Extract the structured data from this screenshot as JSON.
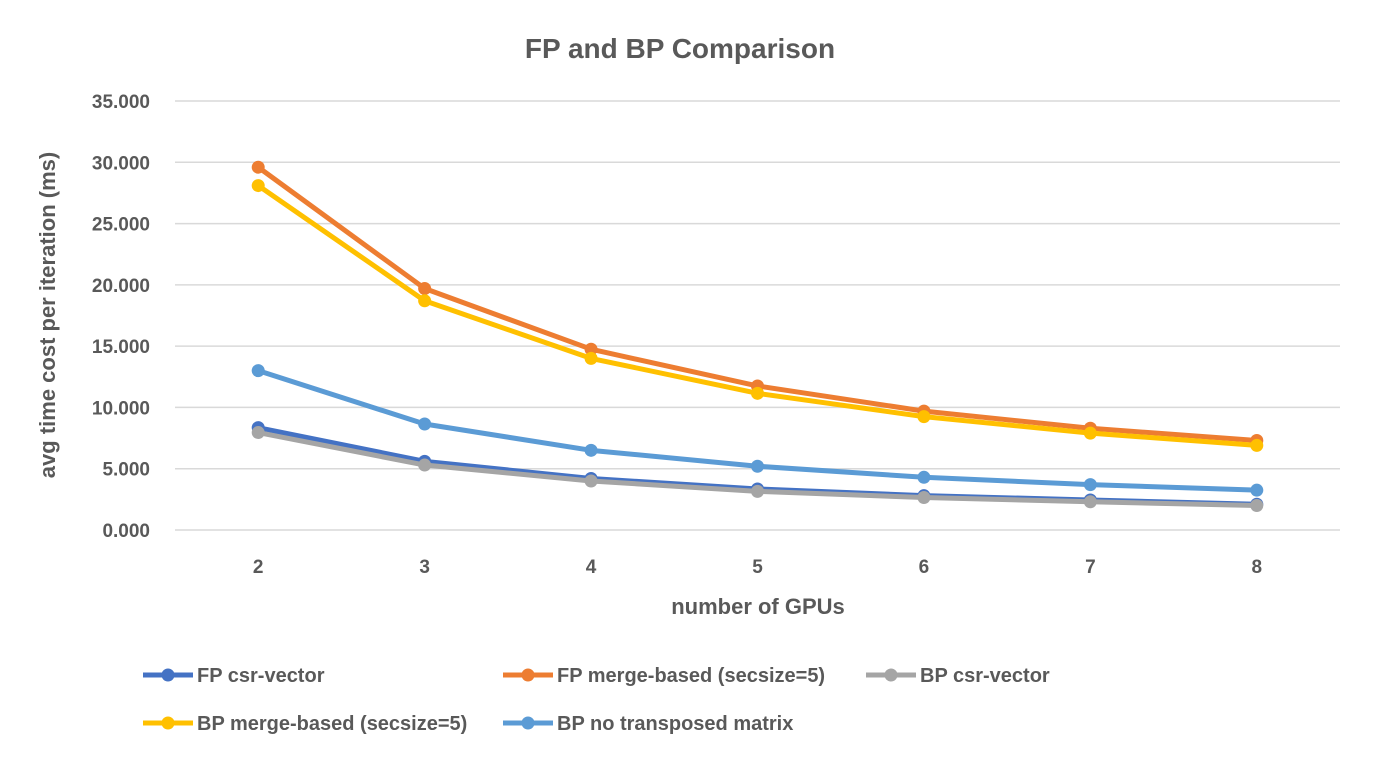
{
  "chart_data": {
    "type": "line",
    "title": "FP and BP Comparison",
    "xlabel": "number of GPUs",
    "ylabel": "avg time cost per iteration (ms)",
    "x": [
      2,
      3,
      4,
      5,
      6,
      7,
      8
    ],
    "ylim": [
      0,
      35
    ],
    "yticks": [
      "0.000",
      "5.000",
      "10.000",
      "15.000",
      "20.000",
      "25.000",
      "30.000",
      "35.000"
    ],
    "grid": true,
    "legend_position": "bottom",
    "series": [
      {
        "name": "FP csr-vector",
        "color": "#4472c4",
        "values": [
          8.35,
          5.6,
          4.2,
          3.35,
          2.8,
          2.45,
          2.1
        ]
      },
      {
        "name": "FP merge-based (secsize=5)",
        "color": "#ed7d31",
        "values": [
          29.6,
          19.7,
          14.75,
          11.75,
          9.7,
          8.3,
          7.3
        ]
      },
      {
        "name": "BP csr-vector",
        "color": "#a5a5a5",
        "values": [
          7.95,
          5.3,
          4.0,
          3.15,
          2.65,
          2.3,
          2.0
        ]
      },
      {
        "name": "BP merge-based (secsize=5)",
        "color": "#ffc000",
        "values": [
          28.1,
          18.7,
          14.0,
          11.15,
          9.25,
          7.9,
          6.9
        ]
      },
      {
        "name": "BP no transposed matrix",
        "color": "#5b9bd5",
        "values": [
          13.0,
          8.65,
          6.5,
          5.2,
          4.3,
          3.7,
          3.25
        ]
      }
    ]
  }
}
